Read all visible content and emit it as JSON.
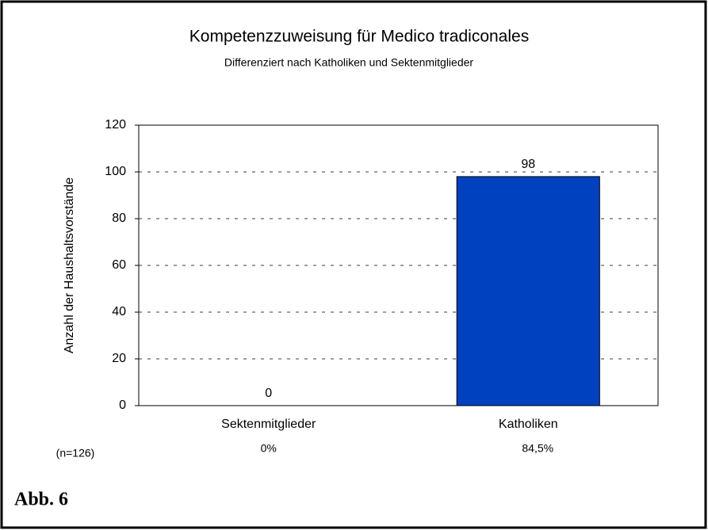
{
  "chart_data": {
    "type": "bar",
    "title": "Kompetenzzuweisung für Medico tradiconales",
    "subtitle": "Differenziert nach Katholiken und Sektenmitglieder",
    "y_label": "Anzahl der Haushaltsvorstände",
    "categories": [
      "Sektenmitglieder",
      "Katholiken"
    ],
    "values": [
      0,
      98
    ],
    "percent_labels": [
      "0%",
      "84,5%"
    ],
    "color": "#0041bf",
    "ylim": [
      0,
      120
    ],
    "yticks": [
      0,
      20,
      40,
      60,
      80,
      100,
      120
    ],
    "grid": true,
    "annotation": "(n=126)",
    "caption": "Abb. 6"
  }
}
